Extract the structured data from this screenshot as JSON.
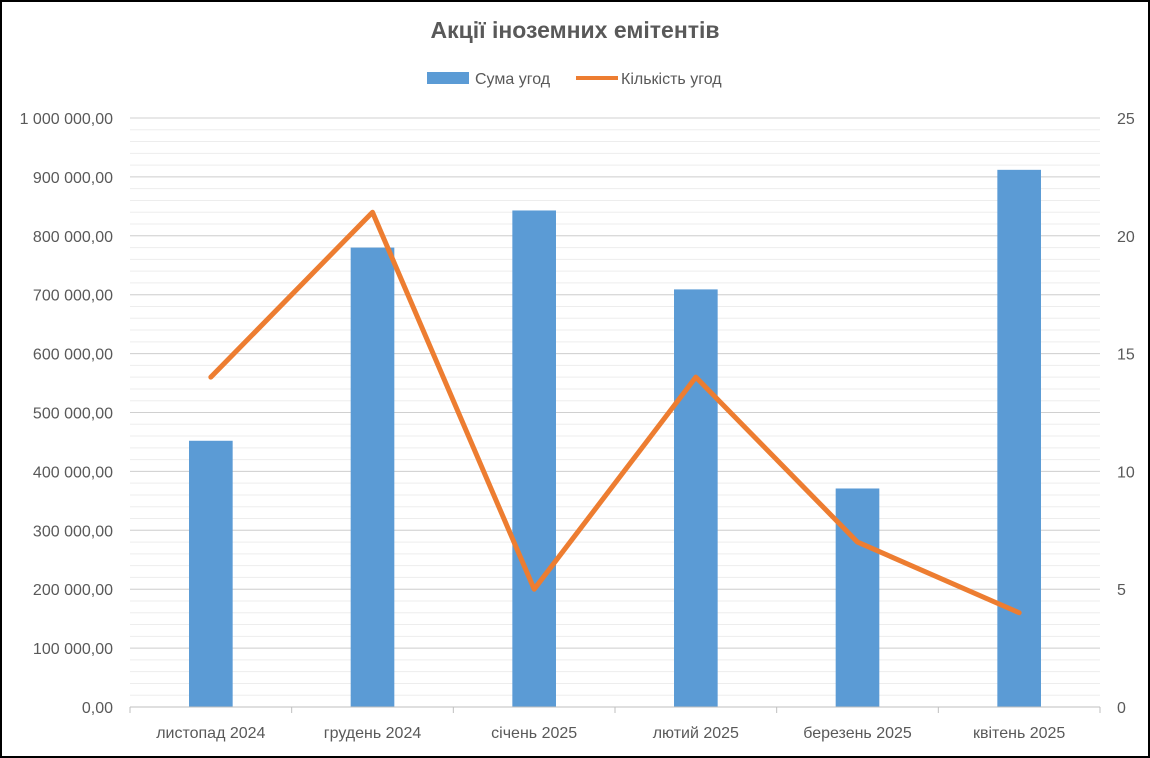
{
  "chart_data": {
    "type": "bar",
    "title": "Акції іноземних емітентів",
    "categories": [
      "листопад 2024",
      "грудень 2024",
      "січень 2025",
      "лютий 2025",
      "березень 2025",
      "квітень 2025"
    ],
    "series": [
      {
        "name": "Сума угод",
        "type": "bar",
        "axis": "left",
        "color": "#5B9BD5",
        "values": [
          452000,
          780000,
          843000,
          709000,
          371000,
          912000
        ]
      },
      {
        "name": "Кількість угод",
        "type": "line",
        "axis": "right",
        "color": "#ED7D31",
        "values": [
          14,
          21,
          5,
          14,
          7,
          4
        ]
      }
    ],
    "y_left": {
      "ylim": [
        0,
        1000000
      ],
      "ticks": [
        0,
        100000,
        200000,
        300000,
        400000,
        500000,
        600000,
        700000,
        800000,
        900000,
        1000000
      ],
      "tick_labels": [
        "0,00",
        "100 000,00",
        "200 000,00",
        "300 000,00",
        "400 000,00",
        "500 000,00",
        "600 000,00",
        "700 000,00",
        "800 000,00",
        "900 000,00",
        "1 000 000,00"
      ]
    },
    "y_right": {
      "ylim": [
        0,
        25
      ],
      "ticks": [
        0,
        5,
        10,
        15,
        20,
        25
      ],
      "tick_labels": [
        "0",
        "5",
        "10",
        "15",
        "20",
        "25"
      ]
    },
    "grid": true,
    "legend_position": "top"
  }
}
